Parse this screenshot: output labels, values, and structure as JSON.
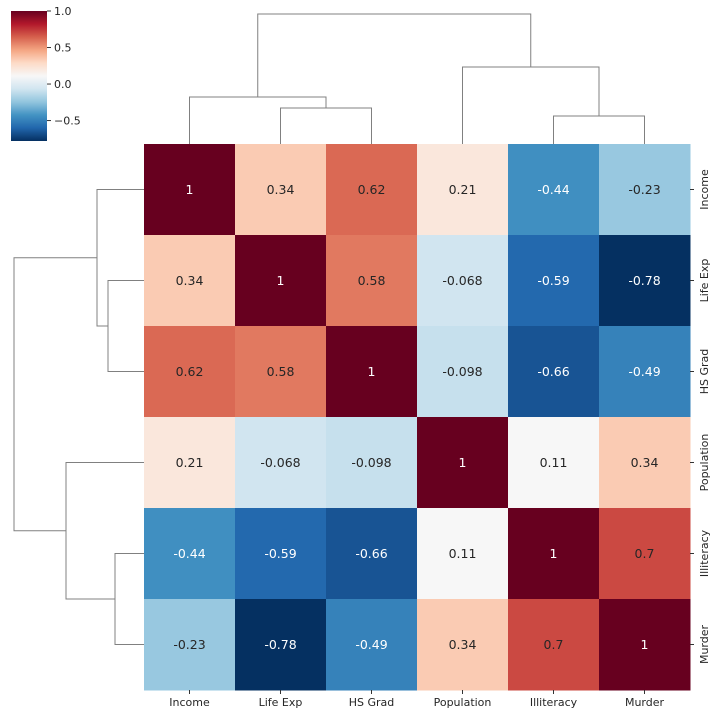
{
  "chart_data": {
    "type": "heatmap",
    "title": "",
    "row_labels": [
      "Income",
      "Life Exp",
      "HS Grad",
      "Population",
      "Illiteracy",
      "Murder"
    ],
    "col_labels": [
      "Income",
      "Life Exp",
      "HS Grad",
      "Population",
      "Illiteracy",
      "Murder"
    ],
    "values": [
      [
        1,
        0.34,
        0.62,
        0.21,
        -0.44,
        -0.23
      ],
      [
        0.34,
        1,
        0.58,
        -0.068,
        -0.59,
        -0.78
      ],
      [
        0.62,
        0.58,
        1,
        -0.098,
        -0.66,
        -0.49
      ],
      [
        0.21,
        -0.068,
        -0.098,
        1,
        0.11,
        0.34
      ],
      [
        -0.44,
        -0.59,
        -0.66,
        0.11,
        1,
        0.7
      ],
      [
        -0.23,
        -0.78,
        -0.49,
        0.34,
        0.7,
        1
      ]
    ],
    "annotations": [
      [
        "1",
        "0.34",
        "0.62",
        "0.21",
        "-0.44",
        "-0.23"
      ],
      [
        "0.34",
        "1",
        "0.58",
        "-0.068",
        "-0.59",
        "-0.78"
      ],
      [
        "0.62",
        "0.58",
        "1",
        "-0.098",
        "-0.66",
        "-0.49"
      ],
      [
        "0.21",
        "-0.068",
        "-0.098",
        "1",
        "0.11",
        "0.34"
      ],
      [
        "-0.44",
        "-0.59",
        "-0.66",
        "0.11",
        "1",
        "0.7"
      ],
      [
        "-0.23",
        "-0.78",
        "-0.49",
        "0.34",
        "0.7",
        "1"
      ]
    ],
    "colormap": "RdBu_r",
    "value_range": [
      -0.78,
      1
    ],
    "colorbar": {
      "ticks": [
        1.0,
        0.5,
        0.0,
        -0.5
      ],
      "tick_labels": [
        "1.0",
        "0.5",
        "0.0",
        "−0.5"
      ],
      "placement": "top-left"
    },
    "row_labels_position": "right",
    "col_labels_position": "bottom",
    "row_dendrogram": "left",
    "col_dendrogram": "top",
    "dendrogram_color": "#808080",
    "cluster_groups": [
      [
        "Income",
        "Life Exp",
        "HS Grad"
      ],
      [
        "Population",
        "Illiteracy",
        "Murder"
      ]
    ]
  }
}
